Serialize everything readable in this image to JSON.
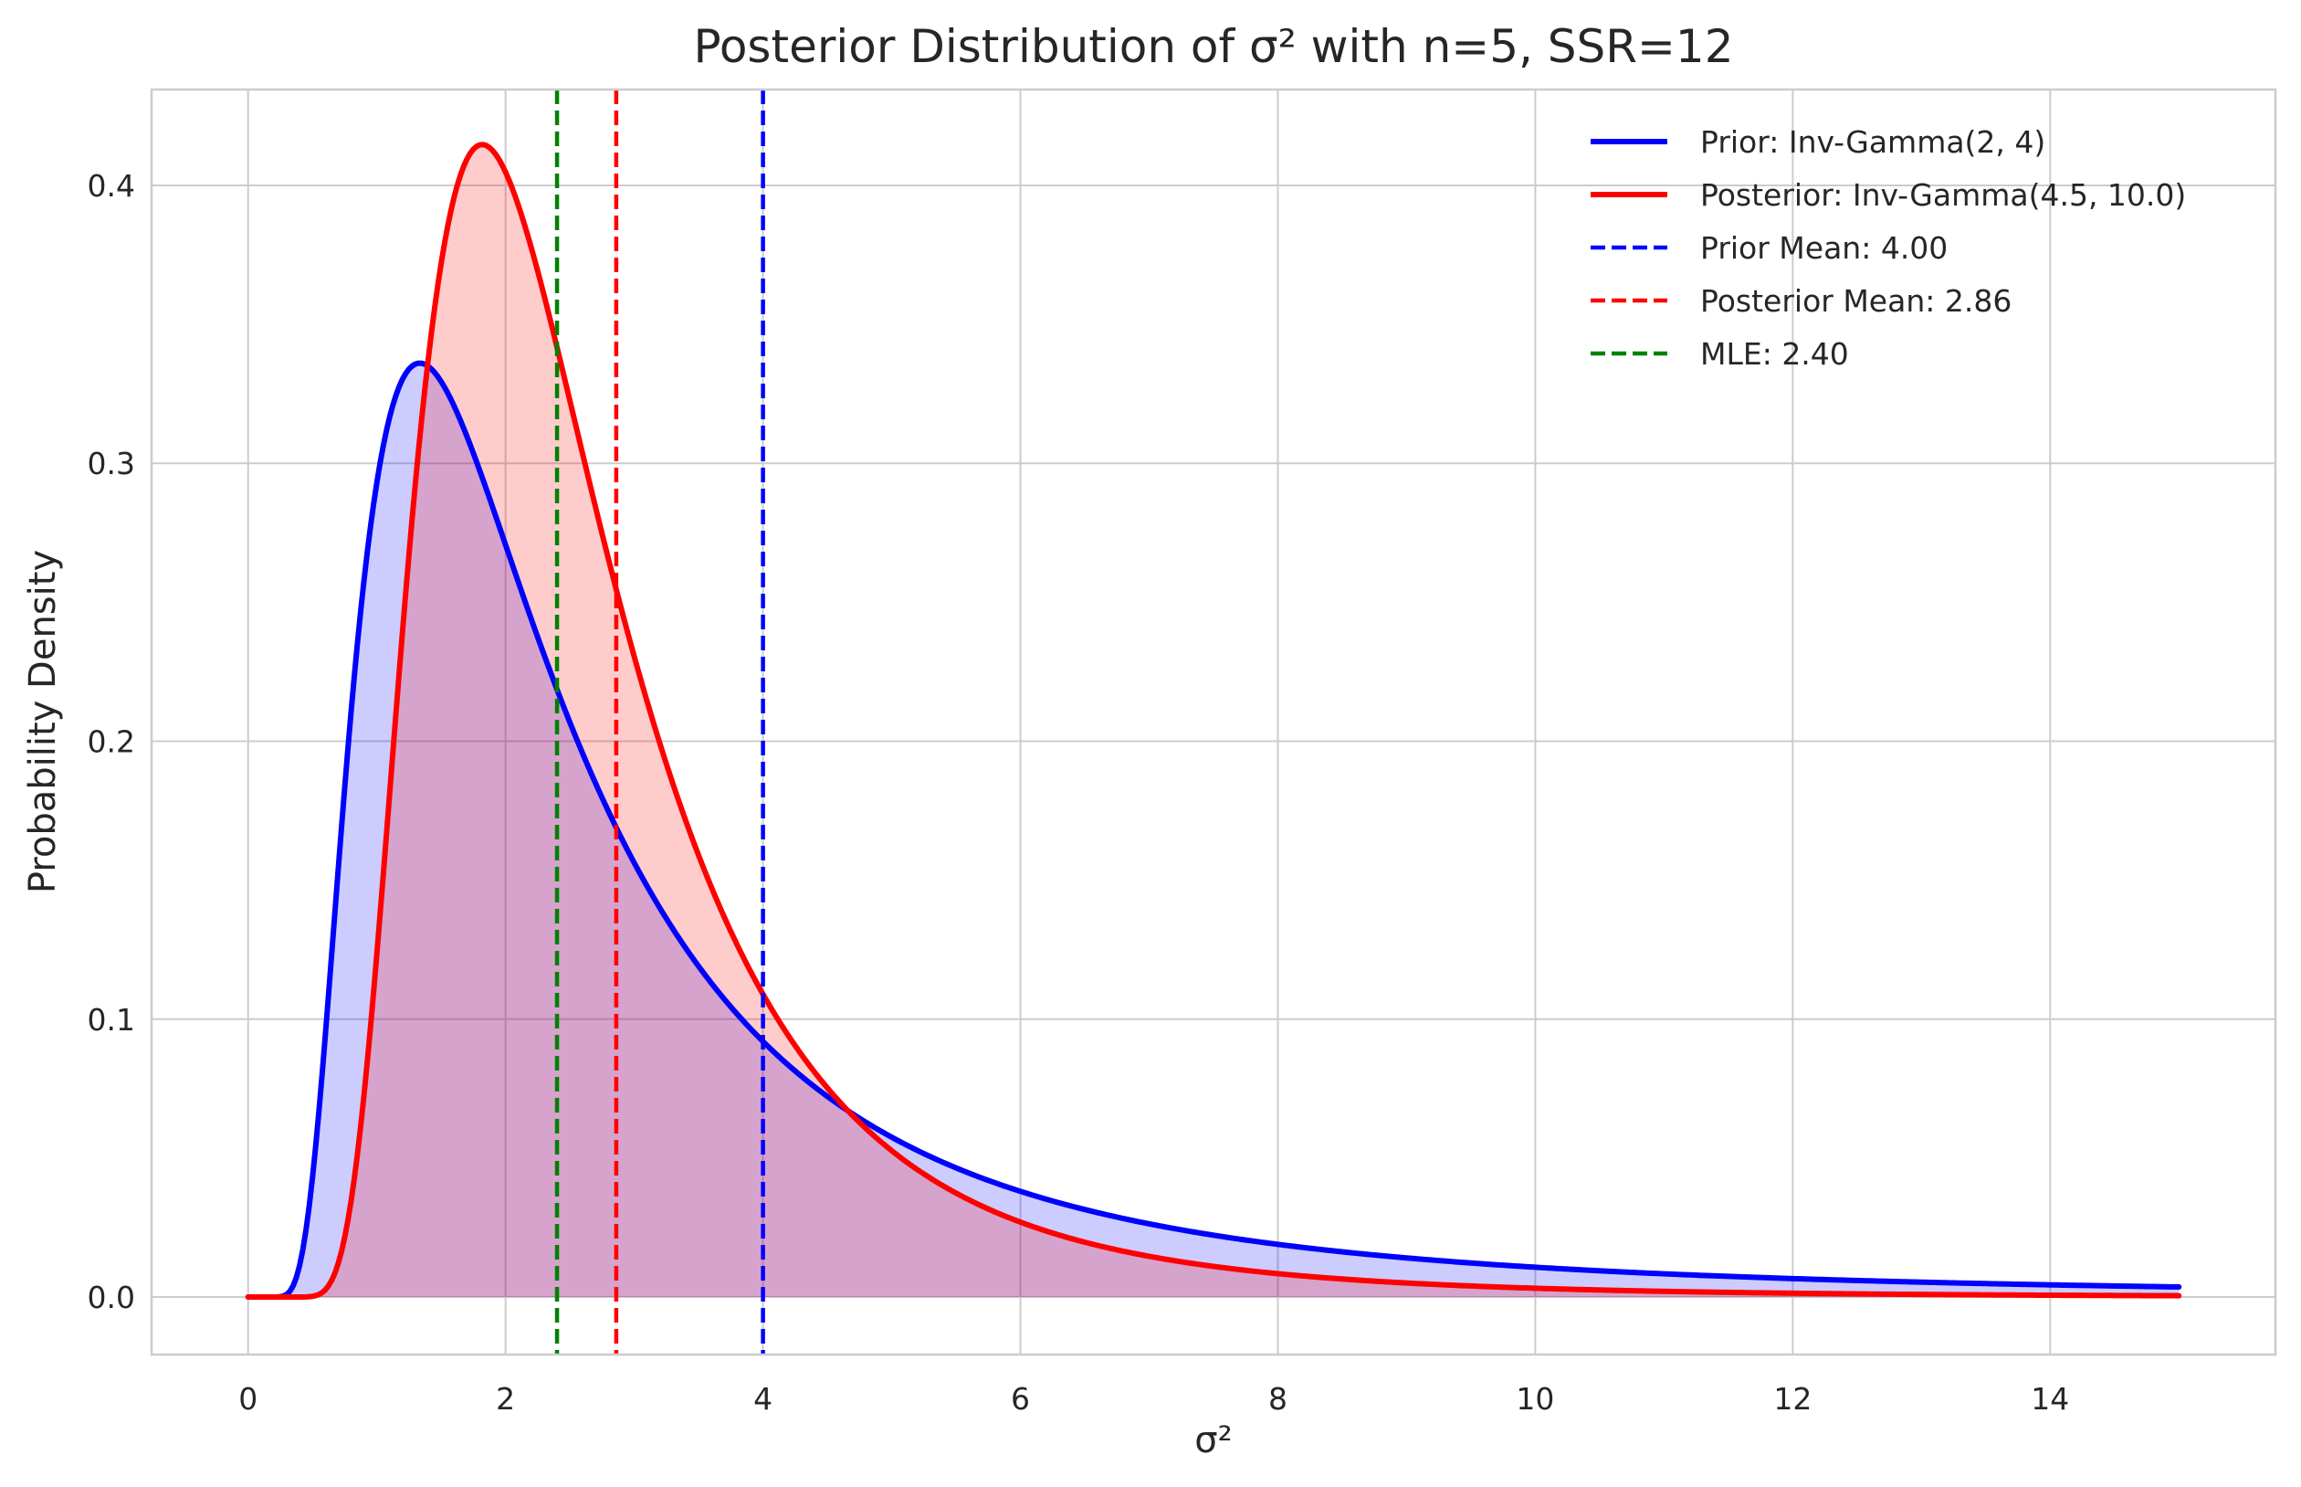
{
  "chart_data": {
    "type": "line",
    "title": "Posterior Distribution of σ² with n=5, SSR=12",
    "xlabel": "σ²",
    "ylabel": "Probability Density",
    "xlim": [
      -0.75,
      15.75
    ],
    "ylim": [
      -0.0207,
      0.4345
    ],
    "xticks": [
      0,
      2,
      4,
      6,
      8,
      10,
      12,
      14
    ],
    "yticks": [
      0.0,
      0.1,
      0.2,
      0.3,
      0.4
    ],
    "xtick_labels": [
      "0",
      "2",
      "4",
      "6",
      "8",
      "10",
      "12",
      "14"
    ],
    "ytick_labels": [
      "0.0",
      "0.1",
      "0.2",
      "0.3",
      "0.4"
    ],
    "grid": true,
    "legend_position": "top-right",
    "series": [
      {
        "name": "Prior: Inv-Gamma(2, 4)",
        "kind": "density-curve",
        "distribution": {
          "family": "inverse-gamma",
          "alpha": 2,
          "beta": 4
        },
        "x_range": [
          0,
          15
        ],
        "peak": {
          "x": 1.33,
          "y": 0.336
        },
        "color": "#0000ff",
        "fill": "#0000ff",
        "fill_opacity": 0.2
      },
      {
        "name": "Posterior: Inv-Gamma(4.5, 10.0)",
        "kind": "density-curve",
        "distribution": {
          "family": "inverse-gamma",
          "alpha": 4.5,
          "beta": 10.0
        },
        "x_range": [
          0,
          15
        ],
        "peak": {
          "x": 1.82,
          "y": 0.414
        },
        "color": "#ff0000",
        "fill": "#ff0000",
        "fill_opacity": 0.2
      }
    ],
    "vlines": [
      {
        "name": "Prior Mean: 4.00",
        "x": 4.0,
        "color": "#0000ff",
        "style": "dashed"
      },
      {
        "name": "Posterior Mean: 2.86",
        "x": 2.86,
        "color": "#ff0000",
        "style": "dashed"
      },
      {
        "name": "MLE: 2.40",
        "x": 2.4,
        "color": "#008000",
        "style": "dashed"
      }
    ]
  }
}
